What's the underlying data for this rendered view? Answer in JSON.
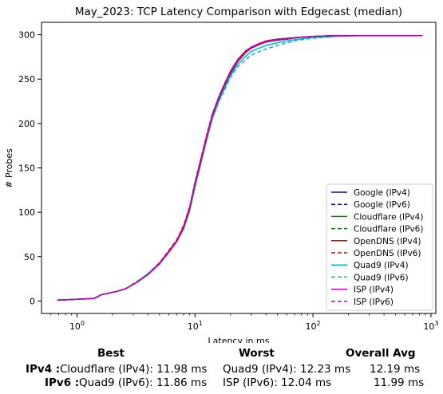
{
  "chart_data": {
    "type": "line",
    "title": "May_2023: TCP Latency Comparison with Edgecast (median)",
    "xlabel": "Latency in ms",
    "ylabel": "# Probes",
    "xscale": "log",
    "xlim": [
      0.5,
      1100
    ],
    "ylim": [
      -14,
      314
    ],
    "xticks": [
      1,
      10,
      100,
      1000
    ],
    "xtick_labels": [
      "10^0",
      "10^1",
      "10^2",
      "10^3"
    ],
    "yticks": [
      0,
      50,
      100,
      150,
      200,
      250,
      300
    ],
    "grid": false,
    "legend_position": "lower right",
    "series": [
      {
        "name": "Google (IPv4)",
        "color": "#0000cc",
        "dash": "solid",
        "x": [
          0.68,
          1.0,
          1.4,
          1.6,
          2.2,
          2.6,
          3.2,
          4.0,
          5.0,
          6.0,
          7.0,
          8.0,
          9.0,
          10.0,
          11.0,
          12.5,
          14.0,
          16.0,
          18.0,
          20.0,
          23.0,
          27.0,
          30.0,
          35.0,
          40.0,
          50.0,
          60.0,
          75.0,
          100.0,
          150.0,
          250.0,
          400.0
        ],
        "y": [
          1,
          2,
          3,
          7,
          11,
          14,
          21,
          30,
          42,
          55,
          67,
          82,
          103,
          130,
          152,
          182,
          207,
          228,
          243,
          256,
          270,
          280,
          285,
          289,
          292,
          294,
          295,
          297,
          298,
          299,
          299,
          299
        ]
      },
      {
        "name": "Google (IPv6)",
        "color": "#0000cc",
        "dash": "dashed",
        "x": [
          0.68,
          1.0,
          1.4,
          1.6,
          2.2,
          2.6,
          3.2,
          4.0,
          5.0,
          6.0,
          7.0,
          8.0,
          9.0,
          10.0,
          11.0,
          12.5,
          14.0,
          16.0,
          18.0,
          20.0,
          23.0,
          27.0,
          30.0,
          35.0,
          40.0,
          50.0,
          60.0,
          75.0,
          100.0,
          150.0,
          250.0
        ],
        "y": [
          1,
          2,
          3,
          7,
          11,
          14,
          21,
          30,
          42,
          55,
          67,
          82,
          103,
          131,
          153,
          183,
          208,
          229,
          244,
          257,
          271,
          281,
          285,
          289,
          292,
          294,
          295,
          297,
          298,
          299,
          299
        ]
      },
      {
        "name": "Cloudflare (IPv4)",
        "color": "#008000",
        "dash": "solid",
        "x": [
          0.68,
          1.0,
          1.4,
          1.6,
          2.2,
          2.6,
          3.2,
          4.0,
          5.0,
          6.0,
          7.0,
          8.0,
          9.0,
          10.0,
          11.0,
          12.5,
          14.0,
          16.0,
          18.0,
          20.0,
          23.0,
          27.0,
          30.0,
          35.0,
          40.0,
          50.0,
          60.0,
          75.0,
          100.0,
          150.0,
          250.0,
          400.0
        ],
        "y": [
          1,
          2,
          3,
          7,
          11,
          14,
          21,
          30,
          43,
          56,
          68,
          84,
          105,
          133,
          155,
          185,
          210,
          231,
          246,
          259,
          272,
          282,
          286,
          290,
          293,
          295,
          296,
          297,
          298,
          299,
          299,
          299
        ]
      },
      {
        "name": "Cloudflare (IPv6)",
        "color": "#008000",
        "dash": "dashed",
        "x": [
          0.68,
          1.0,
          1.4,
          1.6,
          2.2,
          2.6,
          3.2,
          4.0,
          5.0,
          6.0,
          7.0,
          8.0,
          9.0,
          10.0,
          11.0,
          12.5,
          14.0,
          16.0,
          18.0,
          20.0,
          23.0,
          27.0,
          30.0,
          35.0,
          40.0,
          50.0,
          60.0,
          75.0,
          100.0,
          150.0,
          250.0
        ],
        "y": [
          1,
          2,
          3,
          7,
          11,
          14,
          21,
          30,
          43,
          56,
          68,
          84,
          105,
          133,
          155,
          185,
          210,
          231,
          246,
          259,
          272,
          282,
          286,
          290,
          293,
          295,
          296,
          297,
          298,
          299,
          299
        ]
      },
      {
        "name": "OpenDNS (IPv4)",
        "color": "#dd0000",
        "dash": "solid",
        "x": [
          0.68,
          1.0,
          1.4,
          1.6,
          2.2,
          2.6,
          3.2,
          4.0,
          5.0,
          6.0,
          7.0,
          8.0,
          9.0,
          10.0,
          11.0,
          12.5,
          14.0,
          16.0,
          18.0,
          20.0,
          23.0,
          27.0,
          30.0,
          35.0,
          40.0,
          50.0,
          60.0,
          75.0,
          100.0,
          150.0,
          250.0,
          400.0
        ],
        "y": [
          1,
          2,
          3,
          7,
          11,
          14,
          21,
          30,
          42,
          56,
          68,
          83,
          104,
          132,
          154,
          184,
          209,
          230,
          245,
          258,
          271,
          281,
          286,
          290,
          293,
          294,
          295,
          297,
          298,
          299,
          299,
          299
        ]
      },
      {
        "name": "OpenDNS (IPv6)",
        "color": "#dd0000",
        "dash": "dashed",
        "x": [
          0.68,
          1.0,
          1.4,
          1.6,
          2.2,
          2.6,
          3.2,
          4.0,
          5.0,
          6.0,
          7.0,
          8.0,
          9.0,
          10.0,
          11.0,
          12.5,
          14.0,
          16.0,
          18.0,
          20.0,
          23.0,
          27.0,
          30.0,
          35.0,
          40.0,
          50.0,
          60.0,
          75.0,
          100.0,
          150.0,
          250.0
        ],
        "y": [
          1,
          2,
          3,
          7,
          11,
          14,
          21,
          31,
          43,
          57,
          69,
          85,
          106,
          134,
          156,
          186,
          210,
          231,
          246,
          259,
          272,
          282,
          286,
          290,
          293,
          295,
          296,
          297,
          298,
          299,
          299
        ]
      },
      {
        "name": "Quad9 (IPv4)",
        "color": "#00bfbf",
        "dash": "solid",
        "x": [
          0.68,
          1.0,
          1.4,
          1.6,
          2.2,
          2.6,
          3.2,
          4.0,
          5.0,
          6.0,
          7.0,
          8.0,
          9.0,
          10.0,
          11.0,
          12.5,
          14.0,
          16.0,
          18.0,
          20.0,
          23.0,
          27.0,
          30.0,
          35.0,
          40.0,
          50.0,
          60.0,
          75.0,
          100.0,
          150.0,
          250.0,
          400.0
        ],
        "y": [
          1,
          2,
          3,
          7,
          11,
          14,
          21,
          31,
          42,
          55,
          67,
          81,
          101,
          128,
          150,
          180,
          205,
          226,
          241,
          254,
          267,
          276,
          281,
          285,
          288,
          291,
          293,
          295,
          297,
          298,
          299,
          299
        ]
      },
      {
        "name": "Quad9 (IPv6)",
        "color": "#00bfbf",
        "dash": "dashed",
        "x": [
          0.68,
          1.0,
          1.4,
          1.6,
          2.2,
          2.6,
          3.2,
          4.0,
          5.0,
          6.0,
          7.0,
          8.0,
          9.0,
          10.0,
          11.0,
          12.5,
          14.0,
          16.0,
          18.0,
          20.0,
          23.0,
          27.0,
          30.0,
          35.0,
          40.0,
          50.0,
          60.0,
          75.0,
          100.0,
          150.0
        ],
        "y": [
          1,
          2,
          3,
          7,
          11,
          14,
          22,
          31,
          43,
          55,
          67,
          82,
          102,
          129,
          151,
          181,
          205,
          225,
          239,
          252,
          264,
          272,
          277,
          281,
          284,
          288,
          291,
          294,
          296,
          298
        ]
      },
      {
        "name": "ISP (IPv4)",
        "color": "#bf00bf",
        "dash": "solid",
        "x": [
          0.68,
          1.0,
          1.4,
          1.6,
          2.2,
          2.6,
          3.2,
          4.0,
          5.0,
          6.0,
          7.0,
          8.0,
          9.0,
          10.0,
          11.0,
          12.5,
          14.0,
          16.0,
          18.0,
          20.0,
          23.0,
          27.0,
          30.0,
          35.0,
          40.0,
          50.0,
          60.0,
          75.0,
          100.0,
          150.0,
          250.0,
          400.0,
          850.0
        ],
        "y": [
          1,
          2,
          3,
          7,
          11,
          14,
          21,
          30,
          42,
          55,
          67,
          82,
          103,
          131,
          153,
          183,
          208,
          229,
          244,
          257,
          270,
          280,
          285,
          289,
          292,
          294,
          295,
          297,
          298,
          299,
          299,
          299,
          299
        ]
      },
      {
        "name": "ISP (IPv6)",
        "color": "#bf00bf",
        "dash": "dashed",
        "x": [
          0.68,
          1.0,
          1.4,
          1.6,
          2.2,
          2.6,
          3.2,
          4.0,
          5.0,
          6.0,
          7.0,
          8.0,
          9.0,
          10.0,
          11.0,
          12.5,
          14.0,
          16.0,
          18.0,
          20.0,
          23.0,
          27.0,
          30.0,
          35.0,
          40.0,
          50.0,
          60.0,
          75.0,
          100.0,
          150.0,
          250.0
        ],
        "y": [
          1,
          2,
          3,
          7,
          11,
          14,
          21,
          30,
          43,
          56,
          68,
          83,
          104,
          132,
          154,
          184,
          209,
          230,
          245,
          258,
          271,
          281,
          286,
          290,
          293,
          295,
          296,
          297,
          298,
          299,
          299
        ]
      }
    ]
  },
  "summary": {
    "headers": {
      "best": "Best",
      "worst": "Worst",
      "avg": "Overall Avg"
    },
    "rows": [
      {
        "label": "IPv4 :",
        "best": "Cloudflare (IPv4): 11.98 ms",
        "worst": "Quad9 (IPv4): 12.23 ms",
        "avg": "12.19 ms"
      },
      {
        "label": "IPv6 :",
        "best": "Quad9 (IPv6): 11.86 ms",
        "worst": "ISP (IPv6): 12.04 ms",
        "avg": "11.99 ms"
      }
    ]
  }
}
